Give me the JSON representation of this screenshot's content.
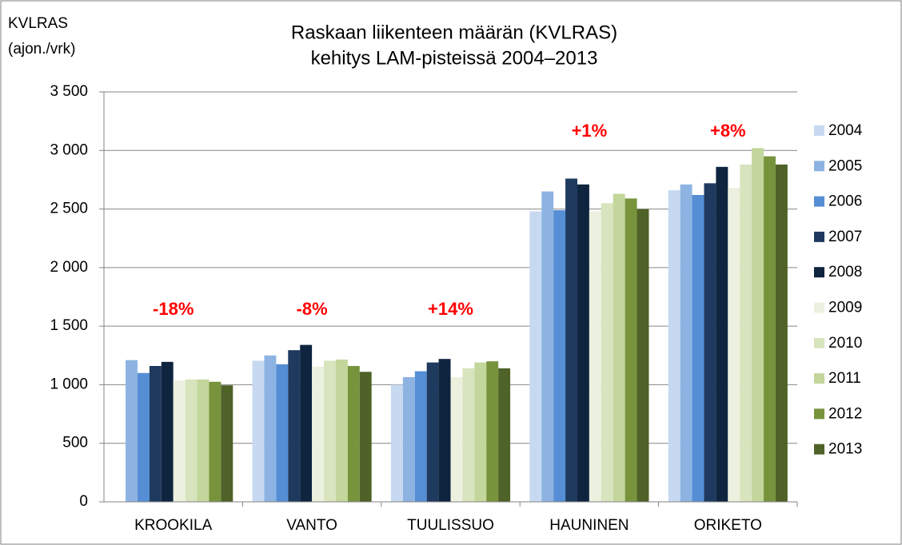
{
  "chart_data": {
    "type": "bar",
    "title": [
      "Raskaan liikenteen määrän (KVLRAS)",
      "kehitys LAM-pisteissä 2004–2013"
    ],
    "y_label": [
      "KVLRAS",
      "(ajon./vrk)"
    ],
    "categories": [
      "KROOKILA",
      "VANTO",
      "TUULISSUO",
      "HAUNINEN",
      "ORIKETO"
    ],
    "annotations": [
      "-18%",
      "-8%",
      "+14%",
      "+1%",
      "+8%"
    ],
    "annotation_color": "#ff0000",
    "series": [
      {
        "name": "2004",
        "color": "#c6d9f1",
        "values": [
          null,
          1205,
          1000,
          2480,
          2660
        ]
      },
      {
        "name": "2005",
        "color": "#8db3e2",
        "values": [
          1210,
          1250,
          1065,
          2650,
          2710
        ]
      },
      {
        "name": "2006",
        "color": "#558ed5",
        "values": [
          1100,
          1175,
          1115,
          2490,
          2620
        ]
      },
      {
        "name": "2007",
        "color": "#1f3a5f",
        "values": [
          1160,
          1295,
          1190,
          2760,
          2720
        ]
      },
      {
        "name": "2008",
        "color": "#0f243e",
        "values": [
          1195,
          1340,
          1220,
          2710,
          2860
        ]
      },
      {
        "name": "2009",
        "color": "#ebf1de",
        "values": [
          1035,
          1155,
          1065,
          2480,
          2680
        ]
      },
      {
        "name": "2010",
        "color": "#d7e4bd",
        "values": [
          1045,
          1205,
          1140,
          2550,
          2880
        ]
      },
      {
        "name": "2011",
        "color": "#c3d69b",
        "values": [
          1045,
          1215,
          1190,
          2630,
          3020
        ]
      },
      {
        "name": "2012",
        "color": "#77933c",
        "values": [
          1025,
          1160,
          1200,
          2590,
          2950
        ]
      },
      {
        "name": "2013",
        "color": "#4f6228",
        "values": [
          995,
          1110,
          1140,
          2500,
          2880
        ]
      }
    ],
    "ylim": [
      0,
      3500
    ],
    "yticks": [
      0,
      500,
      {
        "value": 1000,
        "label": "1 000"
      },
      {
        "value": 1500,
        "label": "1 500"
      },
      {
        "value": 2000,
        "label": "2 000"
      },
      {
        "value": 2500,
        "label": "2 500"
      },
      {
        "value": 3000,
        "label": "3 000"
      },
      {
        "value": 3500,
        "label": "3 500"
      }
    ],
    "grid": true,
    "legend": "right"
  }
}
